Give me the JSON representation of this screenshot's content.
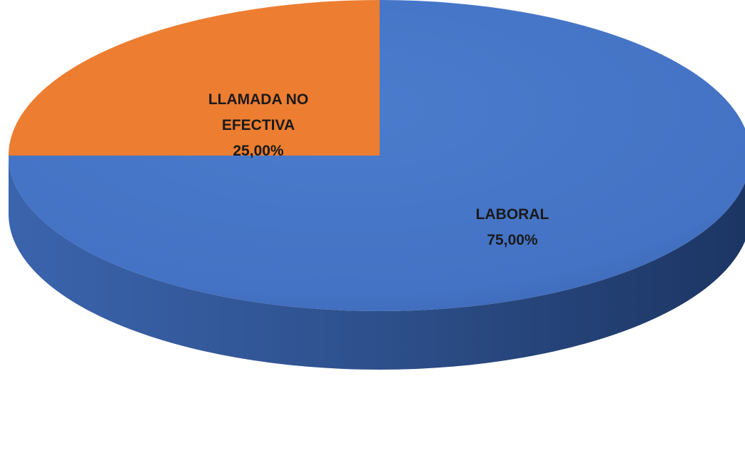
{
  "chart_data": {
    "type": "pie",
    "style": "3d",
    "title": "",
    "slices": [
      {
        "label_lines": [
          "LLAMADA NO",
          "EFECTIVA"
        ],
        "value": 25.0,
        "value_label": "25,00%",
        "color": "#ED7D31"
      },
      {
        "label_lines": [
          "LABORAL"
        ],
        "value": 75.0,
        "value_label": "75,00%",
        "color": "#4472C4"
      }
    ],
    "legend": "none",
    "start": "12 o'clock",
    "direction": "counterclockwise"
  }
}
